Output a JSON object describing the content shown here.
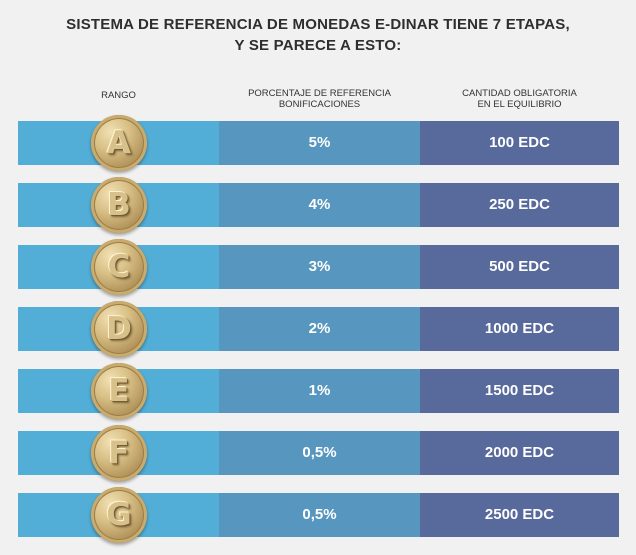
{
  "title": {
    "line1": "SISTEMA DE REFERENCIA DE MONEDAS E-DINAR TIENE 7 ETAPAS,",
    "line2": "Y SE PARECE A ESTO:"
  },
  "headers": {
    "rank": "RANGO",
    "percent_line1": "PORCENTAJE DE REFERENCIA",
    "percent_line2": "BONIFICACIONES",
    "amount_line1": "CANTIDAD OBLIGATORIA",
    "amount_line2": "EN EL EQUILIBRIO"
  },
  "colors": {
    "rank_column": "#52aed6",
    "percent_column": "#5796bf",
    "amount_column": "#58699b",
    "coin": "#d8bf85"
  },
  "rows": [
    {
      "rank": "A",
      "percent": "5%",
      "amount": "100 EDC"
    },
    {
      "rank": "B",
      "percent": "4%",
      "amount": "250 EDC"
    },
    {
      "rank": "C",
      "percent": "3%",
      "amount": "500 EDC"
    },
    {
      "rank": "D",
      "percent": "2%",
      "amount": "1000 EDC"
    },
    {
      "rank": "E",
      "percent": "1%",
      "amount": "1500 EDC"
    },
    {
      "rank": "F",
      "percent": "0,5%",
      "amount": "2000 EDC"
    },
    {
      "rank": "G",
      "percent": "0,5%",
      "amount": "2500 EDC"
    }
  ]
}
